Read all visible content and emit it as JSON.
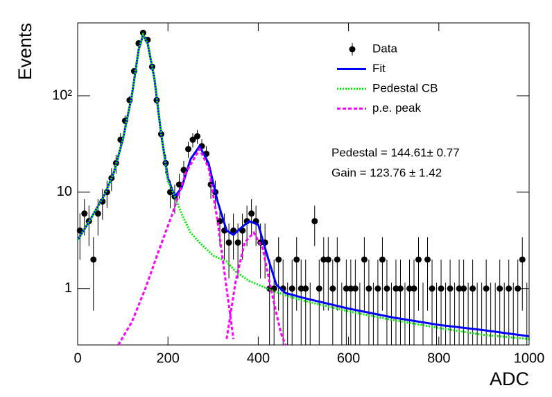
{
  "chart_data": {
    "type": "histogram-fit",
    "xlabel": "ADC",
    "ylabel": "Events",
    "xlim": [
      0,
      1000
    ],
    "xticks": [
      0,
      200,
      400,
      600,
      800,
      1000
    ],
    "ylim": [
      0.26,
      570
    ],
    "ylog": true,
    "yticks": [
      1,
      10,
      {
        "value": 100,
        "label": "10²"
      }
    ],
    "legend": "top-right",
    "annotations": [
      "Pedestal = 144.61± 0.77",
      "Gain = 123.76 ± 1.42"
    ],
    "series": [
      {
        "name": "Data",
        "color": "#000000",
        "style": "points",
        "x": [
          5,
          15,
          25,
          35,
          45,
          55,
          65,
          75,
          85,
          95,
          105,
          115,
          125,
          135,
          145,
          155,
          165,
          175,
          185,
          195,
          205,
          215,
          225,
          235,
          245,
          255,
          265,
          275,
          285,
          295,
          305,
          315,
          325,
          335,
          345,
          355,
          365,
          375,
          385,
          395,
          405,
          415,
          425,
          435,
          445,
          455,
          465,
          475,
          485,
          495,
          505,
          515,
          525,
          535,
          545,
          555,
          565,
          575,
          585,
          595,
          605,
          615,
          625,
          635,
          645,
          655,
          665,
          675,
          685,
          695,
          705,
          715,
          725,
          735,
          745,
          755,
          765,
          775,
          785,
          795,
          805,
          815,
          825,
          835,
          845,
          855,
          865,
          875,
          885,
          895,
          905,
          915,
          925,
          935,
          945,
          955,
          965,
          975,
          985,
          995
        ],
        "values": [
          4,
          6,
          5,
          2,
          6,
          8,
          10,
          14,
          20,
          35,
          55,
          90,
          180,
          350,
          450,
          380,
          200,
          90,
          40,
          20,
          10,
          9,
          12,
          17,
          28,
          35,
          38,
          30,
          25,
          12,
          10,
          5,
          4,
          3,
          4,
          3,
          4,
          5,
          6,
          5,
          3,
          3,
          1,
          1,
          2,
          1,
          0,
          1,
          2,
          1,
          1,
          0,
          5,
          1,
          2,
          2,
          1,
          2,
          0,
          1,
          1,
          1,
          0,
          2,
          1,
          0,
          1,
          2,
          1,
          0,
          1,
          1,
          0,
          1,
          1,
          2,
          0,
          2,
          1,
          0,
          1,
          0,
          1,
          0,
          1,
          1,
          0,
          1,
          0,
          0,
          1,
          0,
          0,
          1,
          0,
          1,
          0,
          1,
          2,
          0
        ],
        "errors": [
          2,
          2.45,
          2.24,
          1.41,
          2.45,
          2.83,
          3.16,
          3.74,
          4.47,
          5.92,
          7.42,
          9.49,
          13.42,
          18.71,
          21.21,
          19.49,
          14.14,
          9.49,
          6.32,
          4.47,
          3.16,
          3,
          3.46,
          4.12,
          5.29,
          5.92,
          6.16,
          5.48,
          5,
          3.46,
          3.16,
          2.24,
          2,
          1.73,
          2,
          1.73,
          2,
          2.24,
          2.45,
          2.24,
          1.73,
          1.73,
          1,
          1,
          1.41,
          1,
          1.15,
          1,
          1.41,
          1,
          1,
          1.15,
          2.24,
          1,
          1.41,
          1.41,
          1,
          1.41,
          1.15,
          1,
          1,
          1,
          1.15,
          1.41,
          1,
          1.15,
          1,
          1.41,
          1,
          1.15,
          1,
          1,
          1.15,
          1,
          1,
          1.41,
          1.15,
          1.41,
          1,
          1.15,
          1,
          1.15,
          1,
          1.15,
          1,
          1,
          1.15,
          1,
          1.15,
          1.15,
          1,
          1.15,
          1.15,
          1,
          1.15,
          1,
          1.15,
          1,
          1.41,
          1.15
        ]
      },
      {
        "name": "Fit",
        "color": "#0000ff",
        "style": "solid",
        "x": [
          0,
          20,
          40,
          60,
          80,
          100,
          120,
          135,
          145,
          155,
          170,
          185,
          200,
          215,
          230,
          250,
          270,
          290,
          310,
          330,
          345,
          360,
          380,
          400,
          420,
          440,
          460,
          500,
          600,
          700,
          800,
          900,
          1000
        ],
        "values": [
          3.2,
          4.5,
          6.5,
          9.5,
          16,
          35,
          100,
          300,
          430,
          350,
          150,
          40,
          14,
          9,
          11,
          22,
          30,
          20,
          8,
          4,
          3.6,
          4.2,
          5,
          4.6,
          2.2,
          1.1,
          0.9,
          0.8,
          0.62,
          0.5,
          0.42,
          0.37,
          0.32
        ]
      },
      {
        "name": "Pedestal CB",
        "color": "#00ee00",
        "style": "dotted",
        "x": [
          0,
          20,
          40,
          60,
          80,
          100,
          120,
          135,
          145,
          155,
          170,
          185,
          200,
          215,
          230,
          250,
          270,
          300,
          330,
          350,
          380,
          420,
          460,
          500,
          600,
          700,
          800,
          900,
          1000
        ],
        "values": [
          3.2,
          4.5,
          6.5,
          9.5,
          16,
          35,
          100,
          300,
          430,
          350,
          150,
          40,
          13,
          9,
          6,
          3.8,
          3,
          2.2,
          1.9,
          1.5,
          1.2,
          1,
          0.85,
          0.75,
          0.58,
          0.47,
          0.39,
          0.33,
          0.3
        ]
      },
      {
        "name": "p.e. peak",
        "color": "#ff00ff",
        "style": "dashed",
        "x": [
          90,
          120,
          150,
          180,
          210,
          240,
          270,
          290,
          310,
          330,
          345,
          340,
          330,
          350,
          370,
          390,
          410,
          430,
          450,
          460
        ],
        "values": [
          0.26,
          0.45,
          1,
          2.5,
          6,
          16,
          28,
          18,
          5,
          1,
          0.3,
          null,
          0.3,
          1.2,
          3,
          3.8,
          2.6,
          0.9,
          0.35,
          0.26
        ]
      }
    ]
  }
}
